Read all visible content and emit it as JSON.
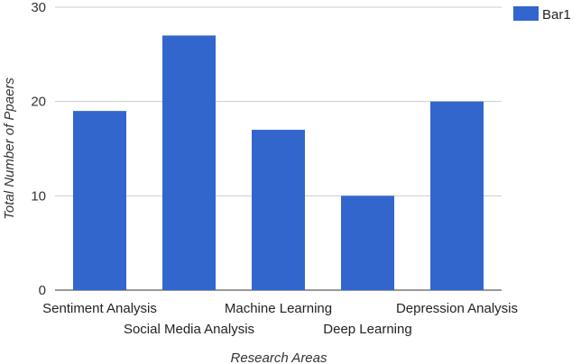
{
  "chart_data": {
    "type": "bar",
    "categories": [
      "Sentiment Analysis",
      "Social Media Analysis",
      "Machine Learning",
      "Deep Learning",
      "Depression Analysis"
    ],
    "series": [
      {
        "name": "Bar1",
        "values": [
          19,
          27,
          17,
          10,
          20
        ]
      }
    ],
    "xlabel": "Research Areas",
    "ylabel": "Total Number of Ppaers",
    "ylim": [
      0,
      30
    ],
    "yticks": [
      "0",
      "10",
      "20",
      "30"
    ],
    "grid": true,
    "legend": "top-right",
    "bar_color": "#3366CC",
    "grid_color": "#cccccc"
  }
}
